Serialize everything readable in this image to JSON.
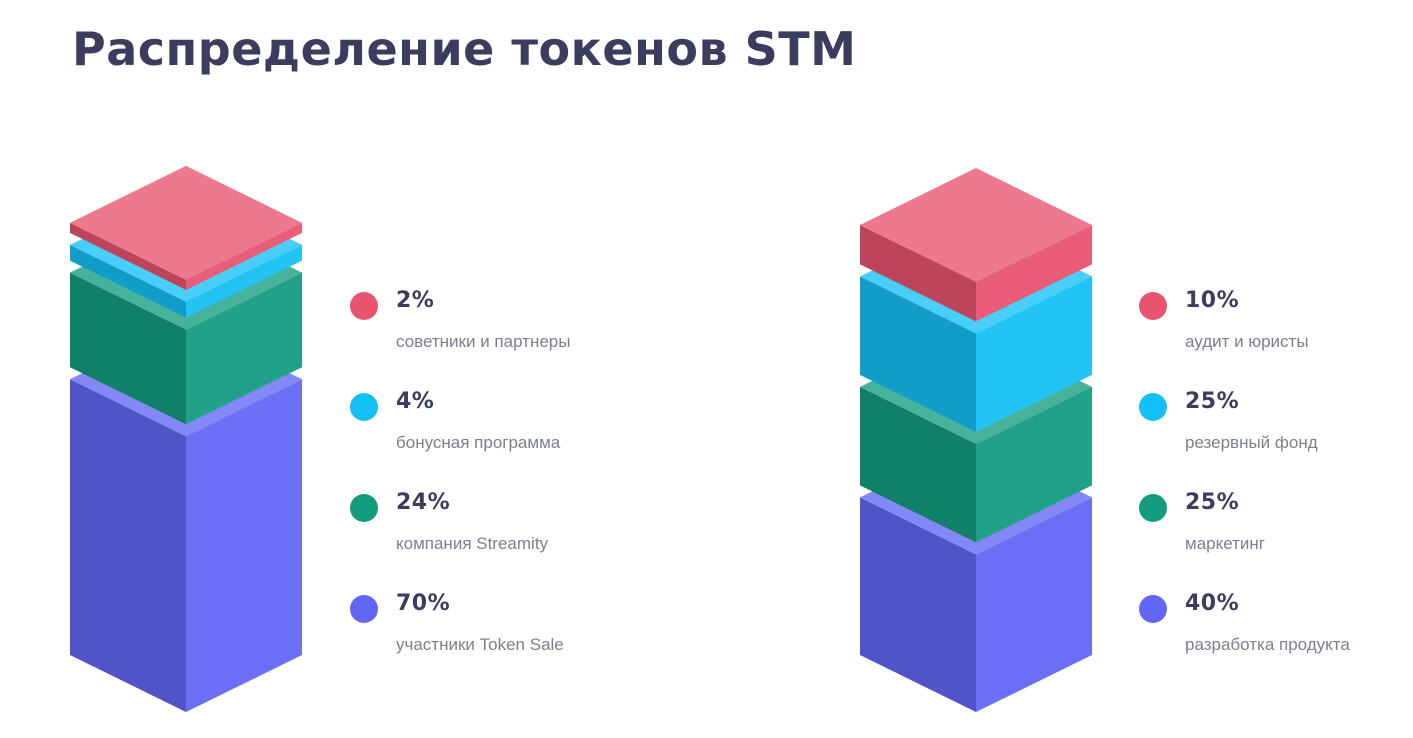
{
  "title": "Распределение токенов STM",
  "chart_data": [
    {
      "type": "stacked-isometric-bar",
      "segments": [
        {
          "percent": 2,
          "label": "2%",
          "name": "советники и партнеры",
          "color": "#e8536f"
        },
        {
          "percent": 4,
          "label": "4%",
          "name": "бонусная программа",
          "color": "#14c0f5"
        },
        {
          "percent": 24,
          "label": "24%",
          "name": "компания Streamity",
          "color": "#139c80"
        },
        {
          "percent": 70,
          "label": "70%",
          "name": "участники Token Sale",
          "color": "#6166f4"
        }
      ]
    },
    {
      "type": "stacked-isometric-bar",
      "segments": [
        {
          "percent": 10,
          "label": "10%",
          "name": "аудит и юристы",
          "color": "#e8536f"
        },
        {
          "percent": 25,
          "label": "25%",
          "name": "резервный фонд",
          "color": "#14c0f5"
        },
        {
          "percent": 25,
          "label": "25%",
          "name": "маркетинг",
          "color": "#139c80"
        },
        {
          "percent": 40,
          "label": "40%",
          "name": "разработка продукта",
          "color": "#6166f4"
        }
      ]
    }
  ]
}
